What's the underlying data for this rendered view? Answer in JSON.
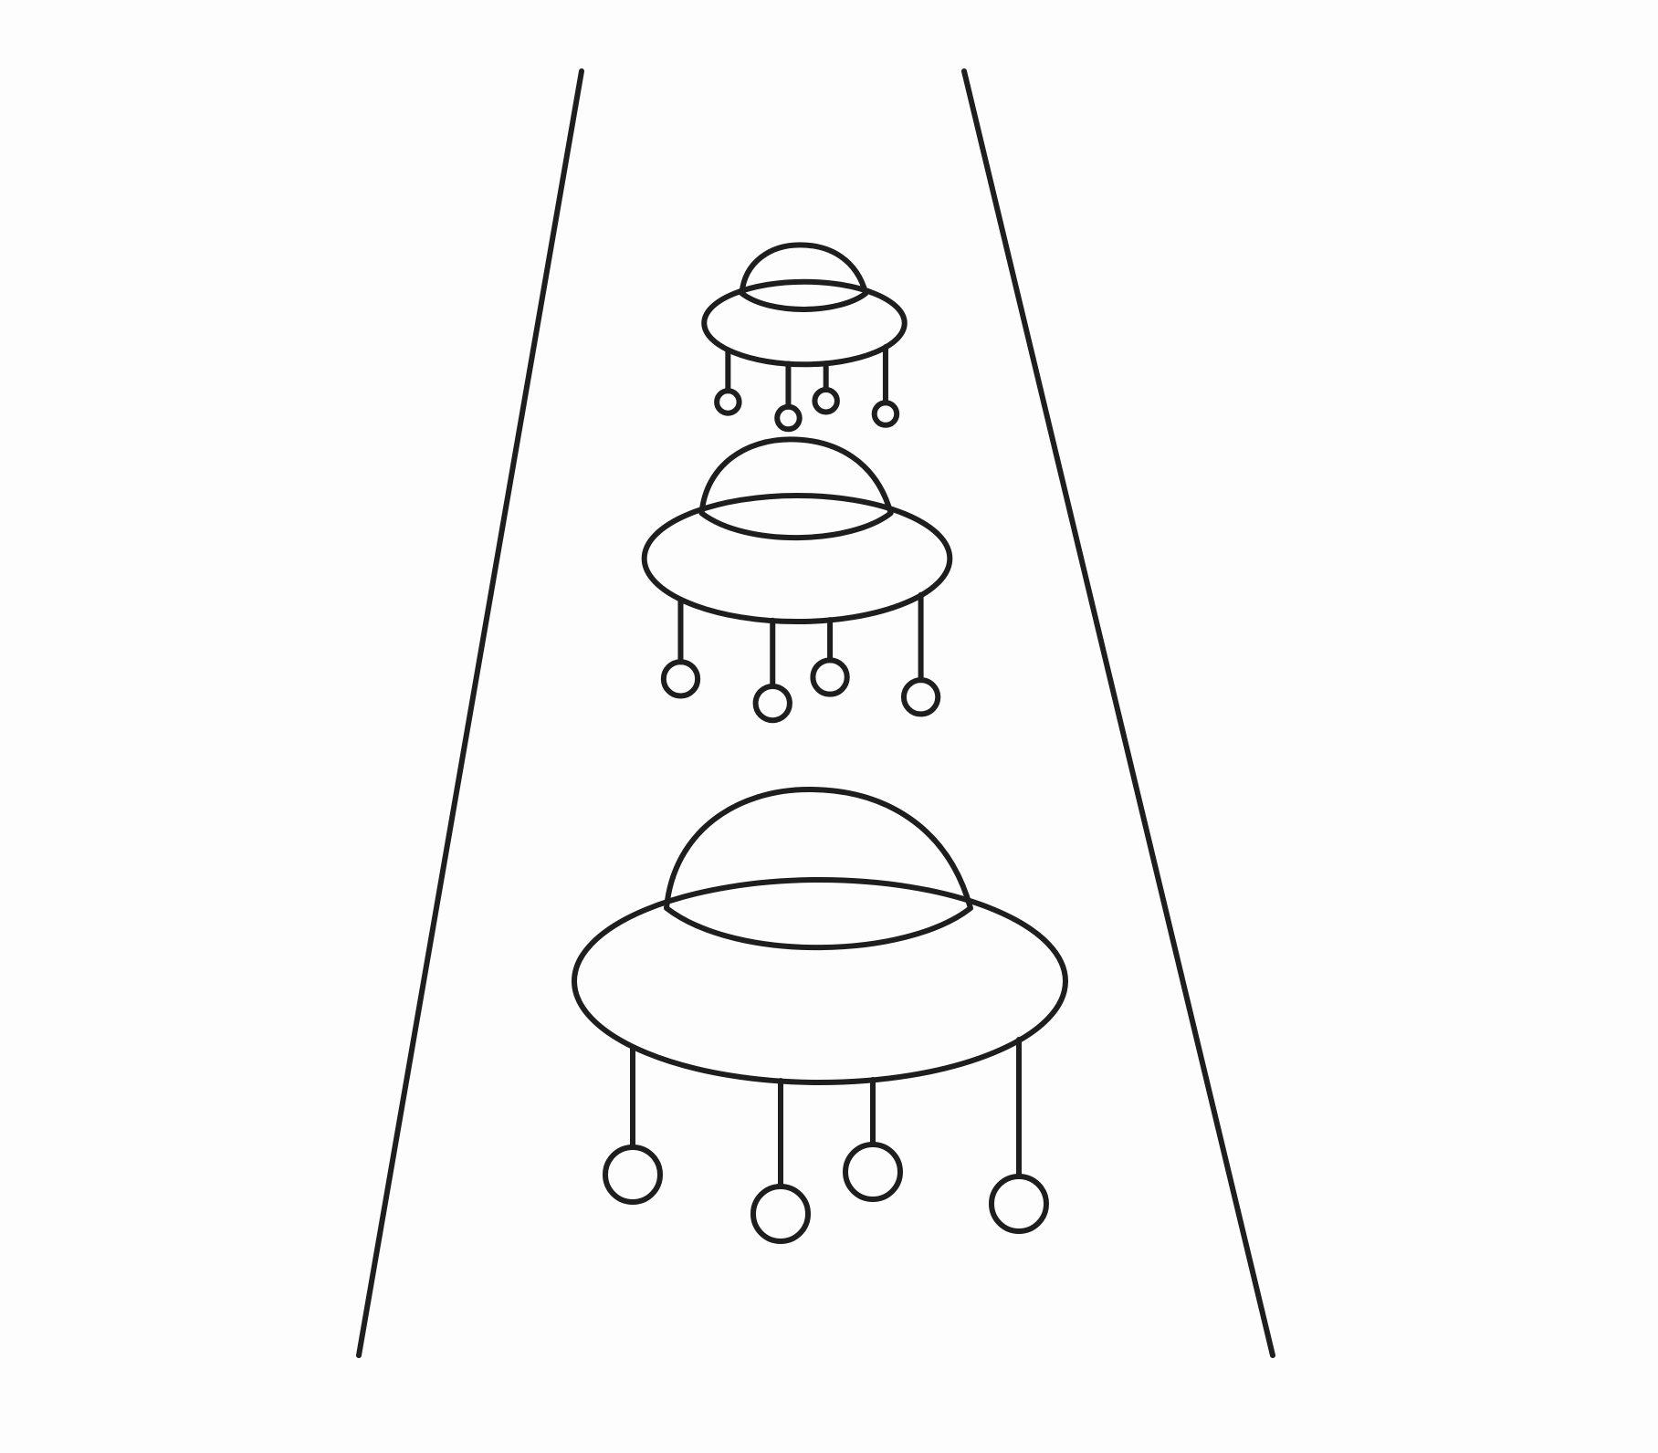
{
  "drawing": {
    "background": "#fdfdfd",
    "line_color": "#1e1e1e",
    "items": [
      {
        "name": "ufo-small"
      },
      {
        "name": "ufo-medium"
      },
      {
        "name": "ufo-large"
      }
    ]
  }
}
